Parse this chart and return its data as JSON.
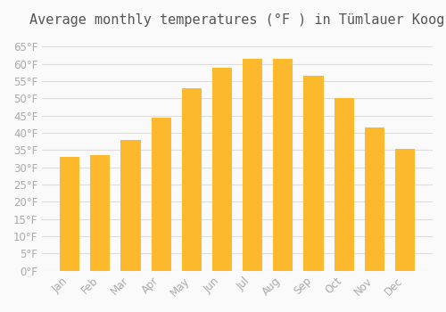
{
  "title": "Average monthly temperatures (°F ) in Tümlauer Koog",
  "months": [
    "Jan",
    "Feb",
    "Mar",
    "Apr",
    "May",
    "Jun",
    "Jul",
    "Aug",
    "Sep",
    "Oct",
    "Nov",
    "Dec"
  ],
  "values": [
    33,
    33.5,
    38,
    44.5,
    53,
    59,
    61.5,
    61.5,
    56.5,
    50,
    41.5,
    35.5
  ],
  "bar_color_top": "#FDB92E",
  "bar_color_bottom": "#F5A623",
  "background_color": "#FAFAFA",
  "grid_color": "#DDDDDD",
  "text_color": "#AAAAAA",
  "ylim": [
    0,
    68
  ],
  "yticks": [
    0,
    5,
    10,
    15,
    20,
    25,
    30,
    35,
    40,
    45,
    50,
    55,
    60,
    65
  ],
  "title_fontsize": 11,
  "tick_fontsize": 8.5
}
